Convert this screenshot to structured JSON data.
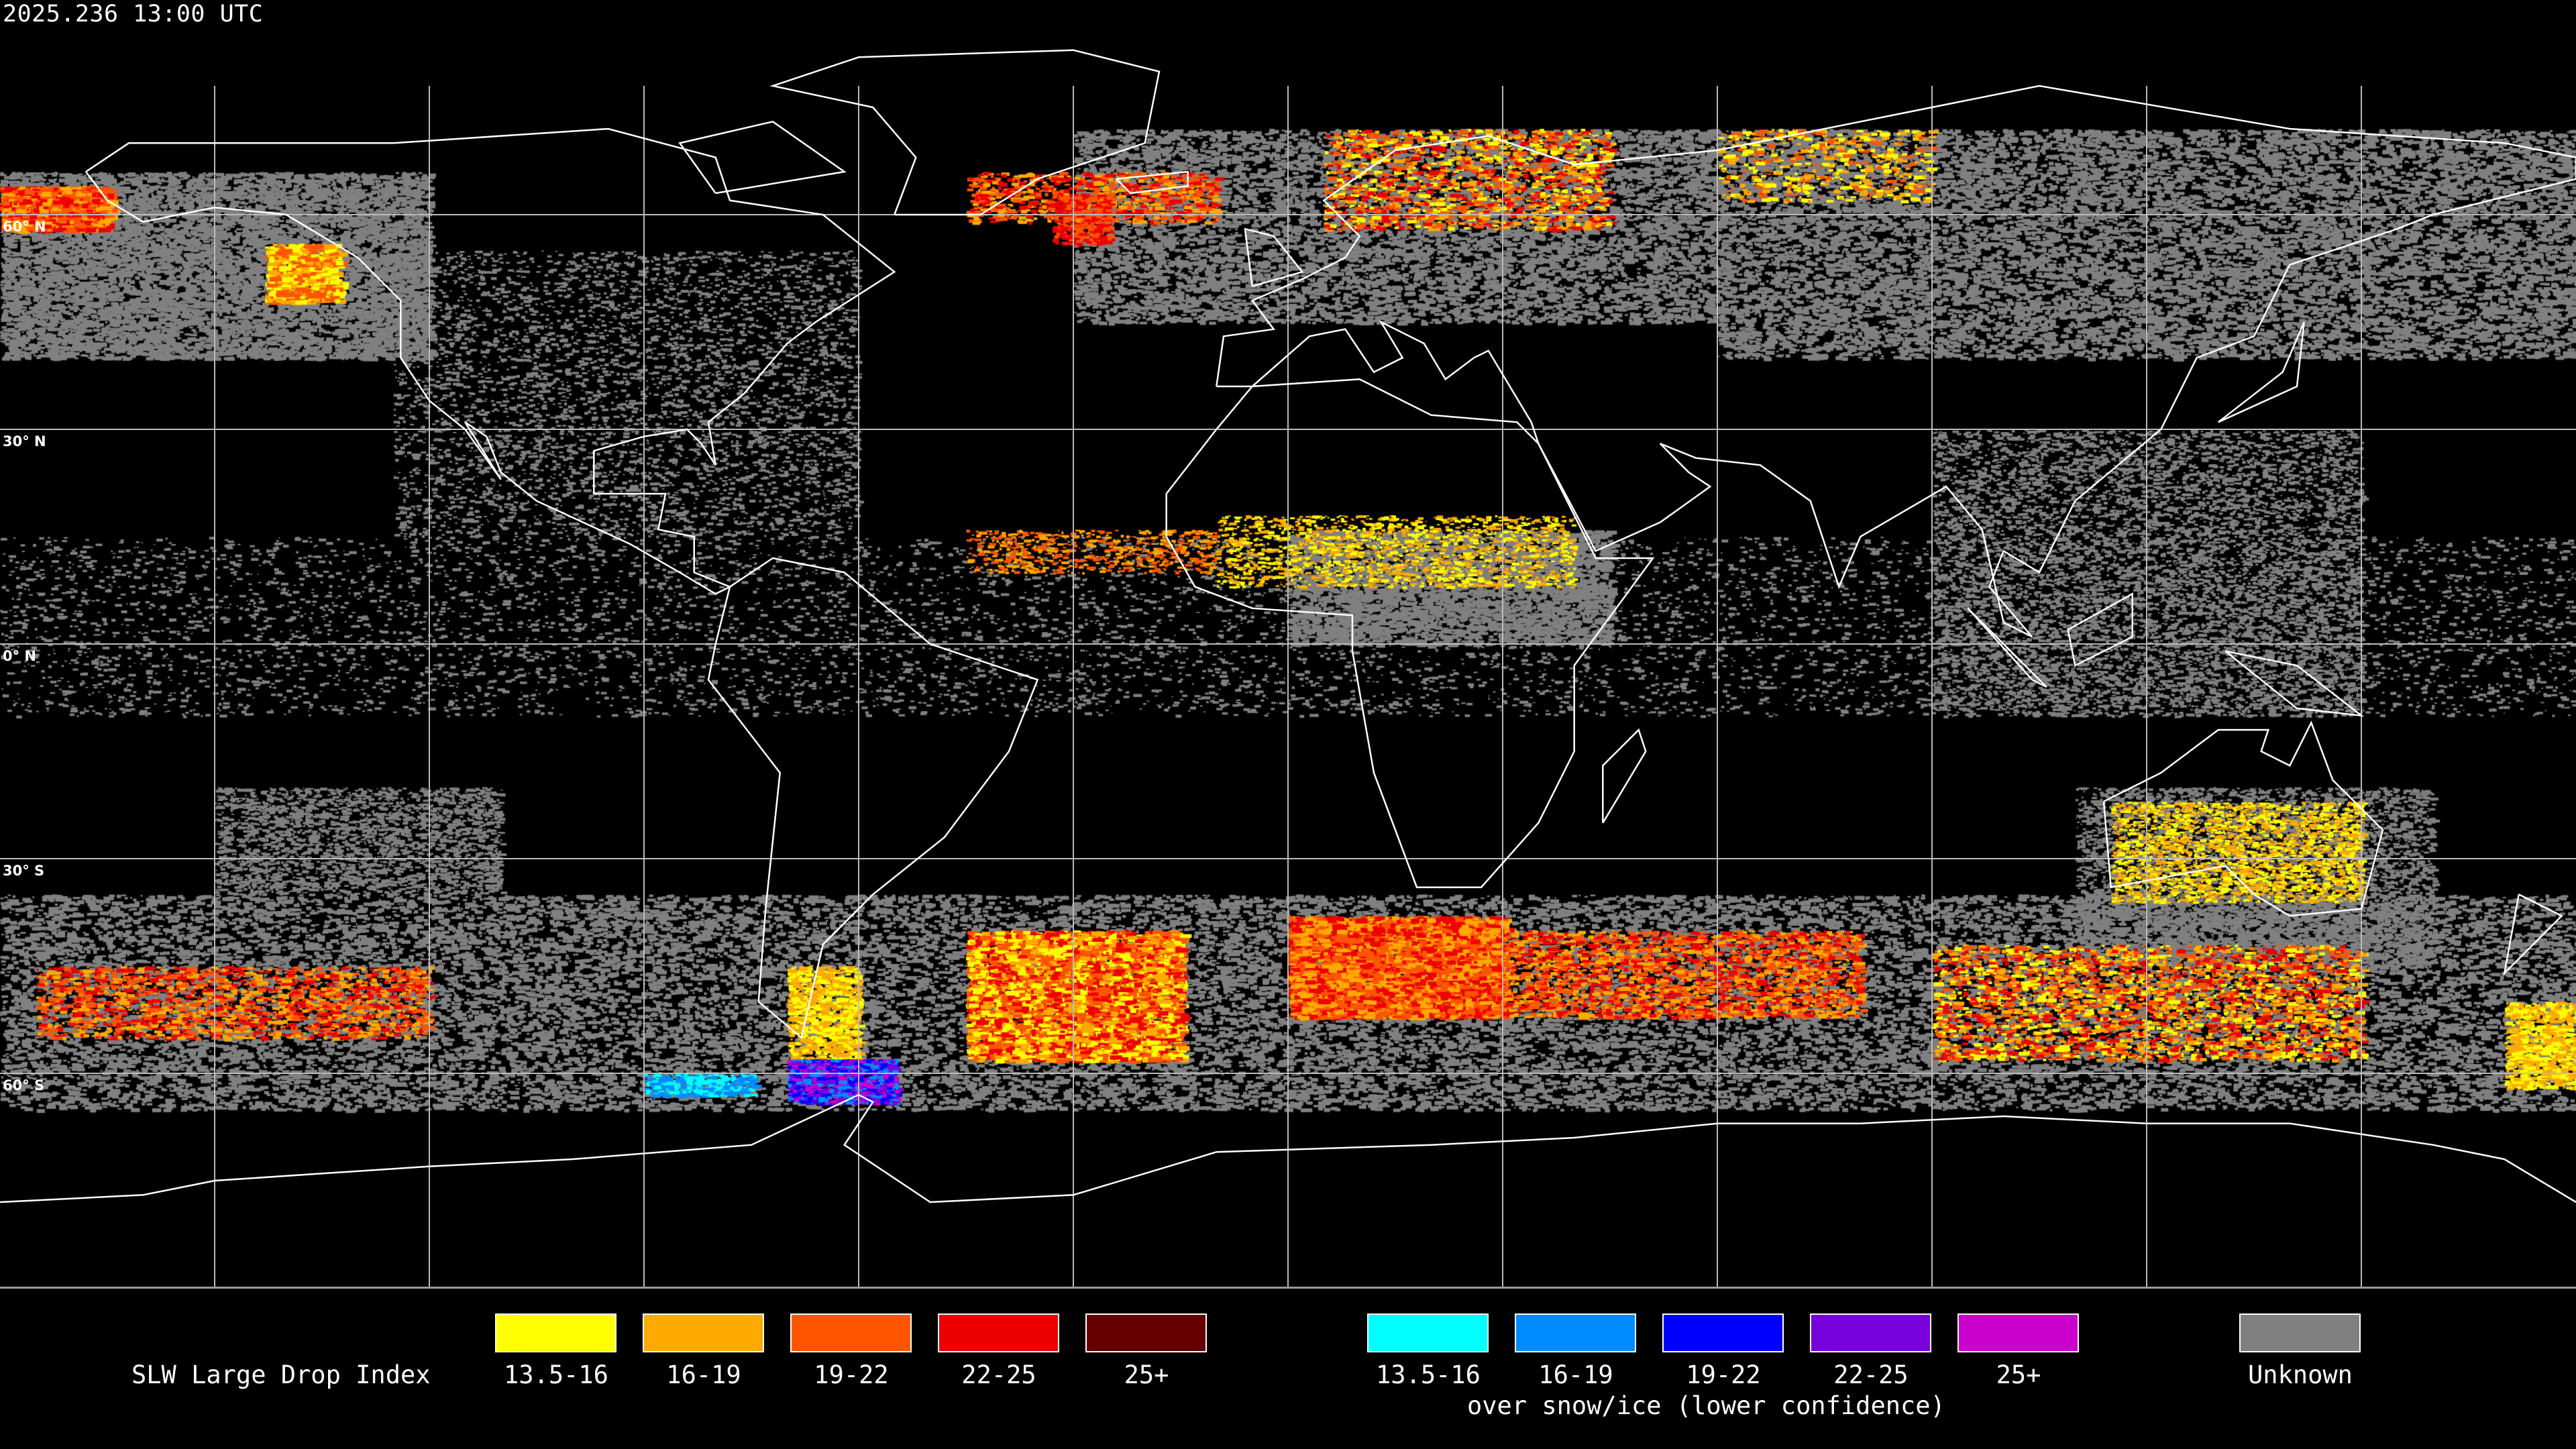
{
  "header": {
    "timestamp": "2025.236 13:00 UTC"
  },
  "latitude_labels": [
    "60° N",
    "30° N",
    "0° N",
    "30° S",
    "60° S"
  ],
  "legend": {
    "title": "SLW Large Drop Index",
    "liquid": [
      {
        "label": "13.5-16",
        "color": "#ffff00"
      },
      {
        "label": "16-19",
        "color": "#ffaa00"
      },
      {
        "label": "19-22",
        "color": "#ff5500"
      },
      {
        "label": "22-25",
        "color": "#ee0000"
      },
      {
        "label": "25+",
        "color": "#660000"
      }
    ],
    "snow_ice": [
      {
        "label": "13.5-16",
        "color": "#00ffff"
      },
      {
        "label": "16-19",
        "color": "#008cff"
      },
      {
        "label": "19-22",
        "color": "#0000ff"
      },
      {
        "label": "22-25",
        "color": "#7700dd"
      },
      {
        "label": "25+",
        "color": "#cc00cc"
      }
    ],
    "snow_ice_caption": "over snow/ice (lower confidence)",
    "unknown": {
      "label": "Unknown",
      "color": "#808080"
    }
  },
  "map": {
    "projection": "equirectangular",
    "center_longitude": 0,
    "graticule_spacing_degrees": 30,
    "coastline_color": "#ffffff",
    "background": "#000000"
  }
}
